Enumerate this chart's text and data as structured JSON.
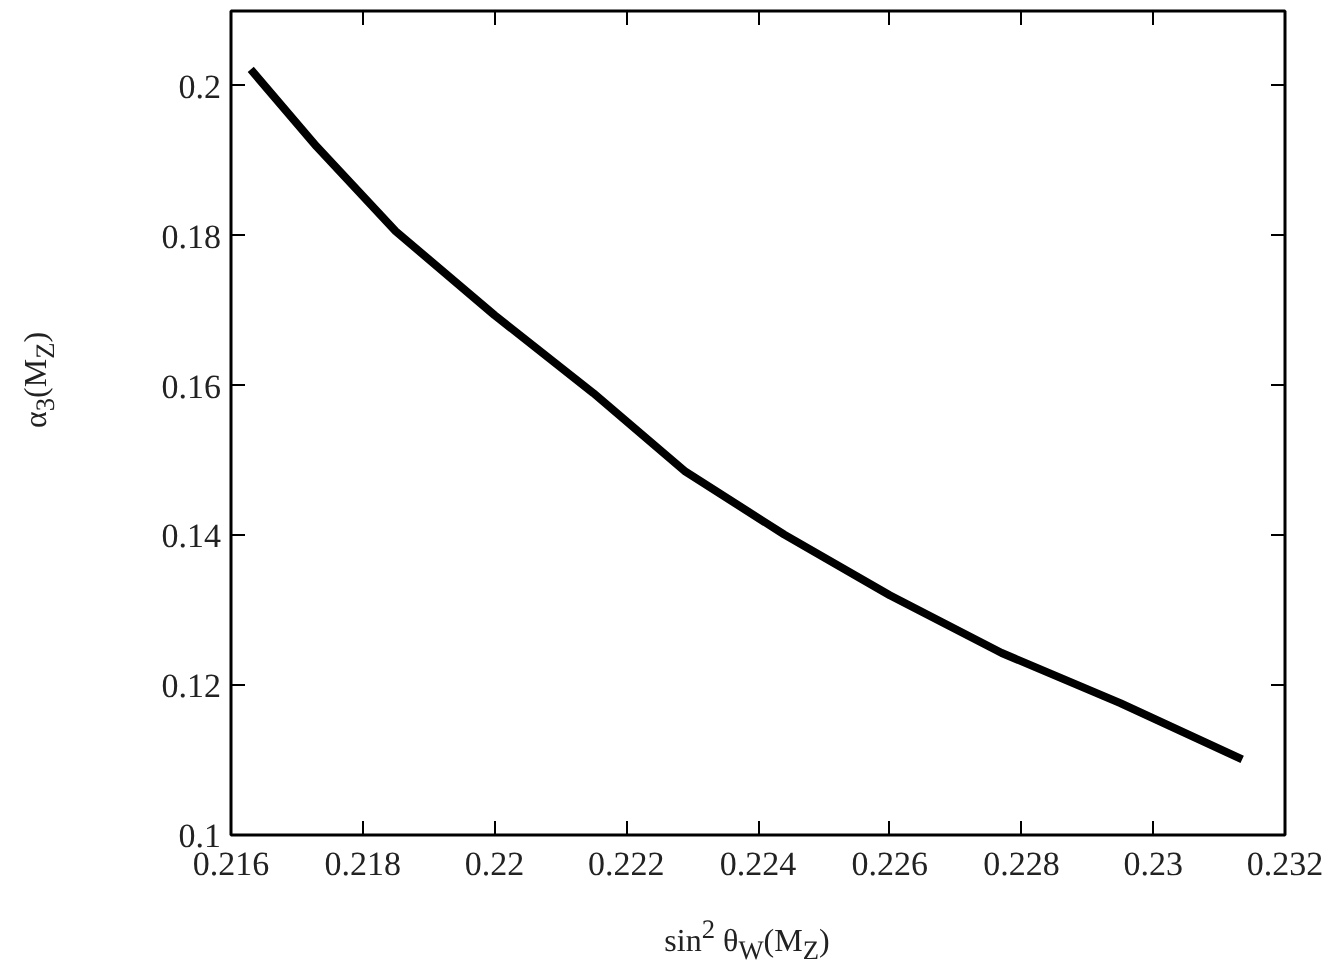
{
  "chart_data": {
    "type": "line",
    "xlabel": "sin$^{2}$ θ$_{W}$(M$_{Z}$)",
    "ylabel": "α$_{3}$(M$_{Z}$)",
    "series": [
      {
        "color": "#000000",
        "x": [
          0.2163,
          0.2173,
          0.2185,
          0.22,
          0.2215,
          0.2229,
          0.2244,
          0.226,
          0.2277,
          0.2295,
          0.23135
        ],
        "values": [
          0.2022,
          0.1919,
          0.1806,
          0.1694,
          0.159,
          0.1485,
          0.1401,
          0.132,
          0.1243,
          0.1176,
          0.1101
        ]
      }
    ],
    "xlim": [
      0.216,
      0.232
    ],
    "ylim": [
      0.1,
      0.21
    ],
    "xticks": [
      0.216,
      0.218,
      0.22,
      0.222,
      0.224,
      0.226,
      0.228,
      0.23,
      0.232
    ],
    "yticks": [
      0.1,
      0.12,
      0.14,
      0.16,
      0.18,
      0.2
    ],
    "grid": false,
    "line_style": "solid"
  }
}
